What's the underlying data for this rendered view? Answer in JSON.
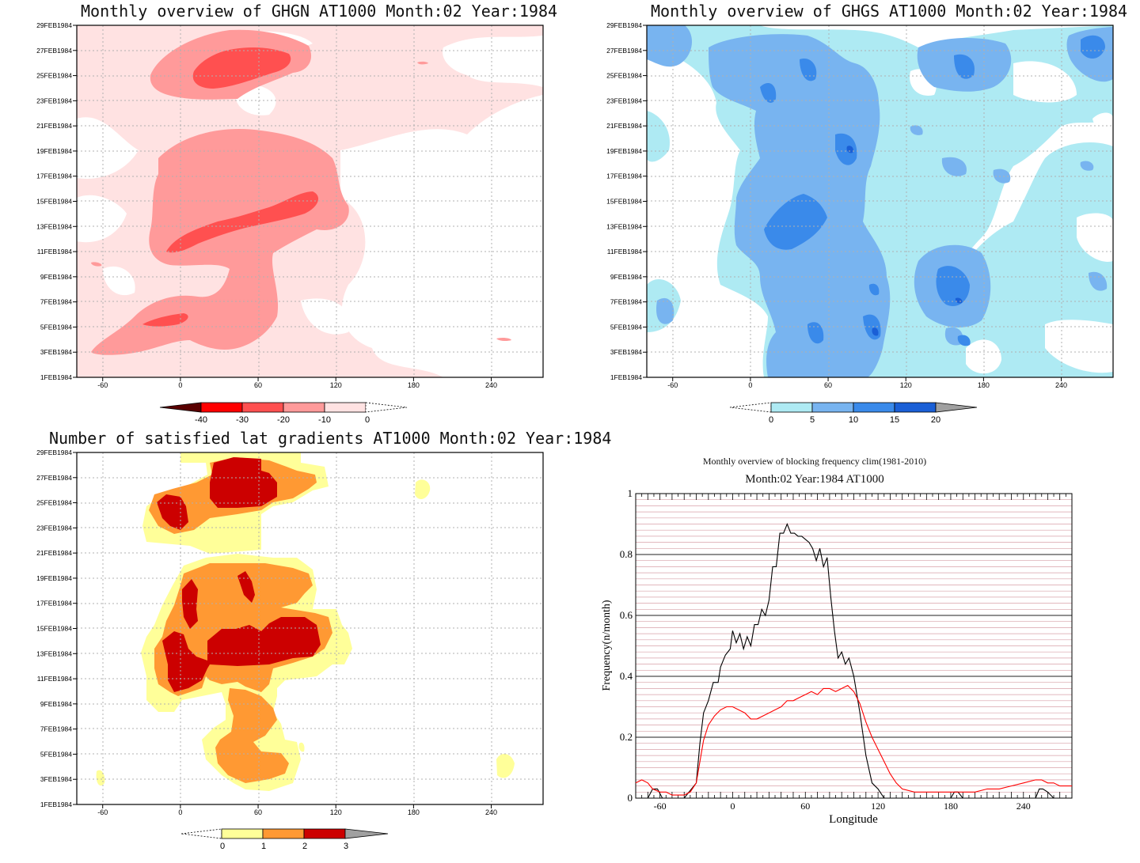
{
  "colors": {
    "red_scale": [
      "#5a0000",
      "#ff0000",
      "#ff5050",
      "#ff9a9a",
      "#ffe2e2"
    ],
    "blue_scale": [
      "#aeeaf3",
      "#78b4f0",
      "#3a8aea",
      "#1a5fd6",
      "#a0a0a0"
    ],
    "yellow_scale": [
      "#ffff99",
      "#ff9933",
      "#cc0000",
      "#a0a0a0"
    ],
    "line_black": "#000000",
    "line_red": "#ff0000",
    "minor_grid": "#d8a0a8"
  },
  "panels": {
    "ghgn": {
      "title": "Monthly overview of GHGN AT1000 Month:02 Year:1984",
      "legend_ticks": [
        "-40",
        "-30",
        "-20",
        "-10",
        "0"
      ]
    },
    "ghgs": {
      "title": "Monthly overview of GHGS AT1000 Month:02 Year:1984",
      "legend_ticks": [
        "0",
        "5",
        "10",
        "15",
        "20"
      ]
    },
    "lat": {
      "title": "Number of satisfied lat gradients AT1000 Month:02 Year:1984",
      "legend_ticks": [
        "0",
        "1",
        "2",
        "3"
      ]
    },
    "freq": {
      "title": "Monthly overview of blocking frequency clim(1981-2010)",
      "subtitle": "Month:02 Year:1984  AT1000"
    }
  },
  "chart_data": [
    {
      "type": "heatmap",
      "title": "Monthly overview of GHGN AT1000 Month:02 Year:1984",
      "x_ticks": [
        "-60",
        "0",
        "60",
        "120",
        "180",
        "240"
      ],
      "y_ticks": [
        "1FEB1984",
        "3FEB1984",
        "5FEB1984",
        "7FEB1984",
        "9FEB1984",
        "11FEB1984",
        "13FEB1984",
        "15FEB1984",
        "17FEB1984",
        "19FEB1984",
        "21FEB1984",
        "23FEB1984",
        "25FEB1984",
        "27FEB1984",
        "29FEB1984"
      ],
      "xlim": [
        -80,
        280
      ],
      "ylim": [
        1,
        29
      ],
      "legend_levels": [
        -40,
        -30,
        -20,
        -10,
        0
      ],
      "grid": true
    },
    {
      "type": "heatmap",
      "title": "Monthly overview of GHGS AT1000 Month:02 Year:1984",
      "x_ticks": [
        "-60",
        "0",
        "60",
        "120",
        "180",
        "240"
      ],
      "y_ticks": [
        "1FEB1984",
        "3FEB1984",
        "5FEB1984",
        "7FEB1984",
        "9FEB1984",
        "11FEB1984",
        "13FEB1984",
        "15FEB1984",
        "17FEB1984",
        "19FEB1984",
        "21FEB1984",
        "23FEB1984",
        "25FEB1984",
        "27FEB1984",
        "29FEB1984"
      ],
      "xlim": [
        -80,
        280
      ],
      "ylim": [
        1,
        29
      ],
      "legend_levels": [
        0,
        5,
        10,
        15,
        20
      ],
      "grid": true
    },
    {
      "type": "heatmap",
      "title": "Number of satisfied lat gradients AT1000 Month:02 Year:1984",
      "x_ticks": [
        "-60",
        "0",
        "60",
        "120",
        "180",
        "240"
      ],
      "y_ticks": [
        "1FEB1984",
        "3FEB1984",
        "5FEB1984",
        "7FEB1984",
        "9FEB1984",
        "11FEB1984",
        "13FEB1984",
        "15FEB1984",
        "17FEB1984",
        "19FEB1984",
        "21FEB1984",
        "23FEB1984",
        "25FEB1984",
        "27FEB1984",
        "29FEB1984"
      ],
      "xlim": [
        -80,
        280
      ],
      "ylim": [
        1,
        29
      ],
      "legend_levels": [
        0,
        1,
        2,
        3
      ],
      "grid": true
    },
    {
      "type": "line",
      "title": "Monthly overview of blocking frequency clim(1981-2010)",
      "subtitle": "Month:02 Year:1984  AT1000",
      "xlabel": "Longitude",
      "ylabel": "Frequency(n/month)",
      "xlim": [
        -80,
        280
      ],
      "ylim": [
        0,
        1
      ],
      "x_ticks": [
        "-60",
        "0",
        "60",
        "120",
        "180",
        "240"
      ],
      "y_ticks": [
        "0",
        "0.2",
        "0.4",
        "0.6",
        "0.8",
        "1"
      ],
      "grid": true,
      "series": [
        {
          "color": "#000000",
          "x": [
            -80,
            -70,
            -66,
            -62,
            -58,
            -50,
            -40,
            -30,
            -27,
            -24,
            -20,
            -16,
            -12,
            -10,
            -6,
            -2,
            0,
            3,
            6,
            9,
            12,
            15,
            18,
            21,
            24,
            27,
            30,
            33,
            36,
            39,
            42,
            45,
            48,
            51,
            54,
            57,
            60,
            63,
            66,
            69,
            72,
            75,
            78,
            81,
            84,
            87,
            90,
            93,
            96,
            100,
            105,
            110,
            115,
            120,
            125,
            130,
            150,
            180,
            183,
            186,
            190,
            200,
            220,
            240,
            250,
            253,
            256,
            260,
            265,
            280
          ],
          "y": [
            0.0,
            0.0,
            0.03,
            0.03,
            0.0,
            0.0,
            0.0,
            0.05,
            0.18,
            0.28,
            0.32,
            0.38,
            0.38,
            0.43,
            0.47,
            0.49,
            0.55,
            0.51,
            0.54,
            0.49,
            0.53,
            0.5,
            0.57,
            0.57,
            0.62,
            0.6,
            0.65,
            0.76,
            0.76,
            0.87,
            0.87,
            0.9,
            0.87,
            0.87,
            0.86,
            0.86,
            0.85,
            0.84,
            0.82,
            0.78,
            0.82,
            0.76,
            0.79,
            0.66,
            0.55,
            0.46,
            0.48,
            0.44,
            0.46,
            0.4,
            0.28,
            0.14,
            0.05,
            0.03,
            0.0,
            0.0,
            0.0,
            0.0,
            0.02,
            0.02,
            0.0,
            0.0,
            0.0,
            0.0,
            0.0,
            0.03,
            0.03,
            0.02,
            0.0,
            0.0
          ]
        },
        {
          "color": "#ff0000",
          "x": [
            -80,
            -75,
            -70,
            -66,
            -60,
            -55,
            -50,
            -45,
            -40,
            -35,
            -30,
            -27,
            -24,
            -20,
            -15,
            -10,
            -5,
            0,
            5,
            10,
            15,
            20,
            25,
            30,
            35,
            40,
            45,
            50,
            55,
            60,
            65,
            70,
            75,
            80,
            85,
            90,
            95,
            100,
            105,
            110,
            115,
            120,
            125,
            130,
            135,
            140,
            150,
            160,
            170,
            180,
            190,
            200,
            210,
            220,
            230,
            240,
            250,
            255,
            260,
            265,
            270,
            275,
            280
          ],
          "y": [
            0.05,
            0.06,
            0.05,
            0.03,
            0.02,
            0.02,
            0.01,
            0.01,
            0.01,
            0.02,
            0.05,
            0.12,
            0.19,
            0.24,
            0.27,
            0.29,
            0.3,
            0.3,
            0.29,
            0.28,
            0.26,
            0.26,
            0.27,
            0.28,
            0.29,
            0.3,
            0.32,
            0.32,
            0.33,
            0.34,
            0.35,
            0.34,
            0.36,
            0.36,
            0.35,
            0.36,
            0.37,
            0.35,
            0.31,
            0.25,
            0.2,
            0.16,
            0.12,
            0.08,
            0.05,
            0.03,
            0.02,
            0.02,
            0.02,
            0.02,
            0.02,
            0.02,
            0.03,
            0.03,
            0.04,
            0.05,
            0.06,
            0.06,
            0.05,
            0.05,
            0.04,
            0.04,
            0.04
          ]
        }
      ]
    }
  ]
}
